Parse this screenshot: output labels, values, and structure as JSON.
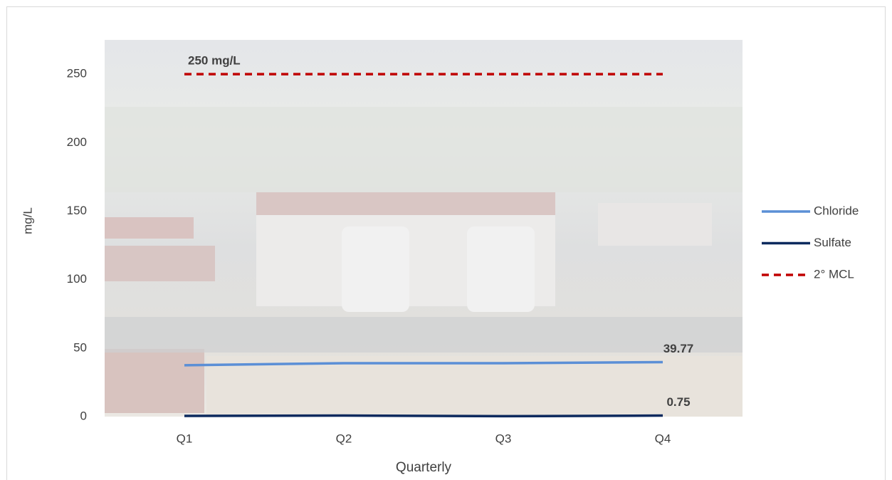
{
  "chart_data": {
    "type": "line",
    "categories": [
      "Q1",
      "Q2",
      "Q3",
      "Q4"
    ],
    "series": [
      {
        "name": "Chloride",
        "color": "#5b8fd6",
        "dash": false,
        "values": [
          37.5,
          39,
          39,
          39.77
        ],
        "value_labels": [
          null,
          null,
          null,
          "39.77"
        ]
      },
      {
        "name": "Sulfate",
        "color": "#0d2a5e",
        "dash": false,
        "values": [
          0.5,
          0.8,
          0.3,
          0.75
        ],
        "value_labels": [
          null,
          null,
          null,
          "0.75"
        ]
      },
      {
        "name": "2° MCL",
        "color": "#c00000",
        "dash": true,
        "values": [
          250,
          250,
          250,
          250
        ],
        "value_labels": [
          "250  mg/L",
          null,
          null,
          null
        ]
      }
    ],
    "ylabel": "mg/L",
    "xlabel": "Quarterly",
    "ylim": [
      0,
      275
    ],
    "yticks": [
      0,
      50,
      100,
      150,
      200,
      250
    ],
    "legend": "right"
  }
}
